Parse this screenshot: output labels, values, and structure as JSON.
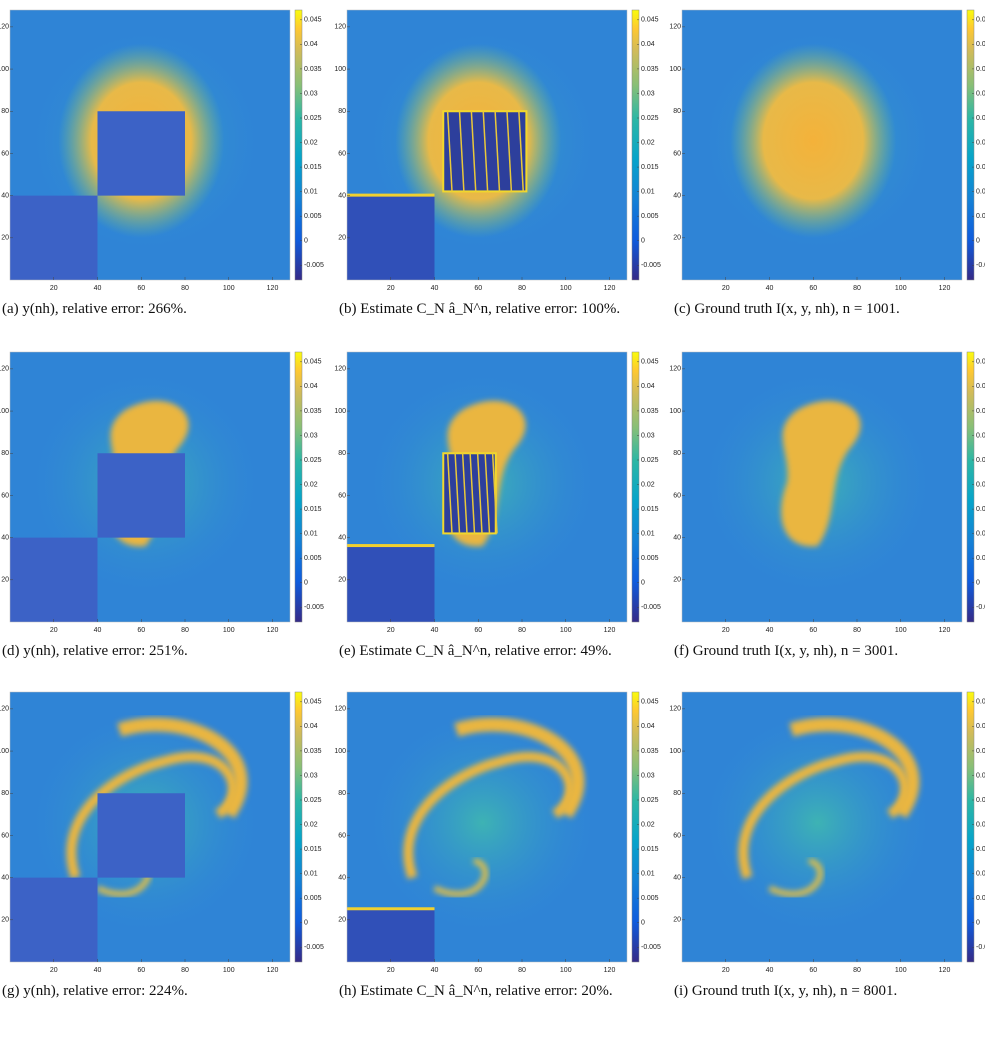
{
  "axes": {
    "xlim": [
      0,
      128
    ],
    "ylim": [
      0,
      128
    ],
    "xticks": [
      20,
      40,
      60,
      80,
      100,
      120
    ],
    "yticks": [
      20,
      40,
      60,
      80,
      100,
      120
    ],
    "colorbar_lim": [
      -0.008,
      0.047
    ],
    "colorbar_ticks": [
      0.045,
      0.04,
      0.035,
      0.03,
      0.025,
      0.02,
      0.015,
      0.01,
      0.005,
      0,
      -0.005
    ]
  },
  "panels": [
    {
      "caption": "(a) y(nh), relative error: 266%."
    },
    {
      "caption": "(b) Estimate C_N â_N^n, relative error: 100%."
    },
    {
      "caption": "(c) Ground truth I(x, y, nh), n = 1001."
    },
    {
      "caption": "(d) y(nh), relative error: 251%."
    },
    {
      "caption": "(e) Estimate C_N â_N^n, relative error: 49%."
    },
    {
      "caption": "(f) Ground truth I(x, y, nh), n = 3001."
    },
    {
      "caption": "(g) y(nh), relative error: 224%."
    },
    {
      "caption": "(h) Estimate C_N â_N^n, relative error: 20%."
    },
    {
      "caption": "(i) Ground truth I(x, y, nh), n = 8001."
    }
  ]
}
